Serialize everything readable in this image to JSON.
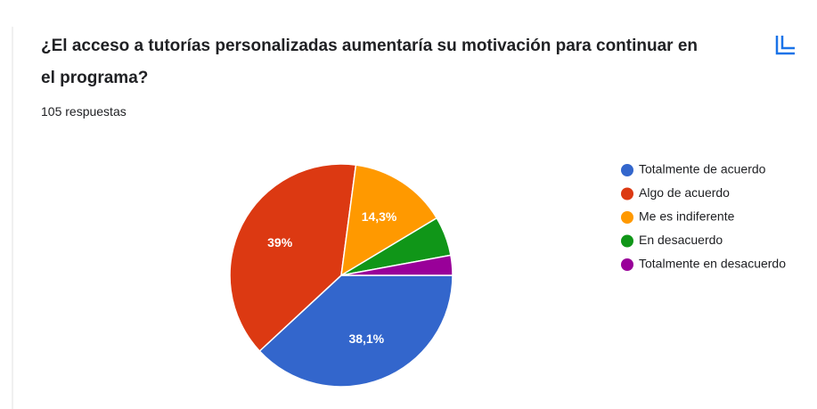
{
  "chart_data": {
    "type": "pie",
    "title": "¿El acceso a tutorías personalizadas aumentaría su motivación para continuar en el programa?",
    "subtitle": "105 respuestas",
    "categories": [
      "Totalmente de acuerdo",
      "Algo de acuerdo",
      "Me es indiferente",
      "En desacuerdo",
      "Totalmente en desacuerdo"
    ],
    "values": [
      38.1,
      39,
      14.3,
      5.7,
      2.9
    ],
    "value_labels": [
      "38,1%",
      "39%",
      "14,3%",
      null,
      null
    ],
    "colors": [
      "#3366cc",
      "#dc3912",
      "#ff9900",
      "#109618",
      "#990099"
    ],
    "legend": "right"
  }
}
